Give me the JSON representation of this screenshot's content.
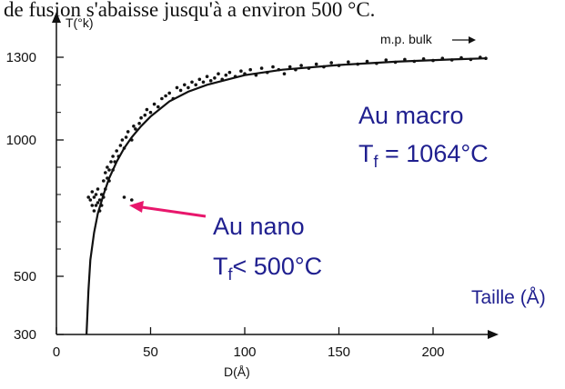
{
  "caption_fragment": "de fusion s'abaisse jusqu'à a environ 500 °C.",
  "chart_data": {
    "type": "scatter",
    "xlabel": "D(Å)",
    "ylabel": "T(°k)",
    "xlim": [
      0,
      230
    ],
    "ylim": [
      300,
      1350
    ],
    "x_ticks": [
      0,
      50,
      100,
      150,
      200
    ],
    "y_ticks": [
      300,
      500,
      1000,
      1300
    ],
    "bulk_label": "m.p. bulk",
    "series": [
      {
        "kind": "points",
        "points": [
          [
            17,
            790
          ],
          [
            18,
            780
          ],
          [
            19,
            760
          ],
          [
            19,
            810
          ],
          [
            20,
            740
          ],
          [
            20,
            790
          ],
          [
            21,
            760
          ],
          [
            21,
            800
          ],
          [
            22,
            770
          ],
          [
            22,
            820
          ],
          [
            23,
            740
          ],
          [
            23,
            780
          ],
          [
            24,
            800
          ],
          [
            24,
            760
          ],
          [
            25,
            850
          ],
          [
            25,
            790
          ],
          [
            26,
            880
          ],
          [
            26,
            820
          ],
          [
            27,
            860
          ],
          [
            27,
            900
          ],
          [
            28,
            850
          ],
          [
            28,
            890
          ],
          [
            29,
            920
          ],
          [
            30,
            890
          ],
          [
            30,
            940
          ],
          [
            31,
            920
          ],
          [
            32,
            960
          ],
          [
            33,
            940
          ],
          [
            34,
            980
          ],
          [
            35,
            1000
          ],
          [
            36,
            970
          ],
          [
            37,
            1010
          ],
          [
            38,
            1030
          ],
          [
            40,
            1000
          ],
          [
            41,
            1050
          ],
          [
            42,
            1040
          ],
          [
            44,
            1060
          ],
          [
            45,
            1080
          ],
          [
            47,
            1090
          ],
          [
            48,
            1110
          ],
          [
            50,
            1100
          ],
          [
            52,
            1130
          ],
          [
            54,
            1120
          ],
          [
            56,
            1150
          ],
          [
            58,
            1160
          ],
          [
            60,
            1170
          ],
          [
            62,
            1150
          ],
          [
            64,
            1190
          ],
          [
            66,
            1180
          ],
          [
            68,
            1200
          ],
          [
            70,
            1190
          ],
          [
            72,
            1210
          ],
          [
            74,
            1200
          ],
          [
            76,
            1220
          ],
          [
            78,
            1210
          ],
          [
            80,
            1230
          ],
          [
            82,
            1215
          ],
          [
            84,
            1225
          ],
          [
            86,
            1240
          ],
          [
            88,
            1220
          ],
          [
            90,
            1235
          ],
          [
            92,
            1245
          ],
          [
            95,
            1230
          ],
          [
            98,
            1250
          ],
          [
            100,
            1240
          ],
          [
            103,
            1255
          ],
          [
            106,
            1235
          ],
          [
            109,
            1260
          ],
          [
            112,
            1245
          ],
          [
            115,
            1265
          ],
          [
            118,
            1255
          ],
          [
            121,
            1240
          ],
          [
            124,
            1265
          ],
          [
            127,
            1255
          ],
          [
            130,
            1270
          ],
          [
            134,
            1260
          ],
          [
            138,
            1275
          ],
          [
            142,
            1265
          ],
          [
            146,
            1280
          ],
          [
            150,
            1270
          ],
          [
            155,
            1283
          ],
          [
            160,
            1275
          ],
          [
            165,
            1285
          ],
          [
            170,
            1278
          ],
          [
            175,
            1290
          ],
          [
            180,
            1282
          ],
          [
            185,
            1292
          ],
          [
            190,
            1285
          ],
          [
            195,
            1294
          ],
          [
            200,
            1288
          ],
          [
            205,
            1296
          ],
          [
            210,
            1290
          ],
          [
            215,
            1298
          ],
          [
            220,
            1292
          ],
          [
            225,
            1300
          ],
          [
            228,
            1296
          ],
          [
            40,
            780
          ],
          [
            36,
            790
          ]
        ]
      },
      {
        "kind": "fit",
        "points": [
          [
            16,
            300
          ],
          [
            17,
            450
          ],
          [
            18,
            560
          ],
          [
            20,
            660
          ],
          [
            22,
            730
          ],
          [
            25,
            800
          ],
          [
            28,
            860
          ],
          [
            32,
            920
          ],
          [
            36,
            970
          ],
          [
            40,
            1010
          ],
          [
            45,
            1050
          ],
          [
            50,
            1085
          ],
          [
            60,
            1140
          ],
          [
            70,
            1175
          ],
          [
            80,
            1200
          ],
          [
            100,
            1235
          ],
          [
            120,
            1255
          ],
          [
            150,
            1272
          ],
          [
            180,
            1284
          ],
          [
            210,
            1292
          ],
          [
            228,
            1296
          ]
        ]
      }
    ],
    "annotations": {
      "nano_line1": "Au nano",
      "nano_t": "T",
      "nano_sub": "f",
      "nano_rest": "< 500°C",
      "macro_line1": "Au macro",
      "macro_t": "T",
      "macro_sub": "f",
      "macro_rest": " = 1064°C",
      "taille": "Taille (Å)"
    },
    "colors": {
      "arrow": "#e8176c",
      "annotation": "#1f1f8f",
      "data": "#111111"
    }
  }
}
